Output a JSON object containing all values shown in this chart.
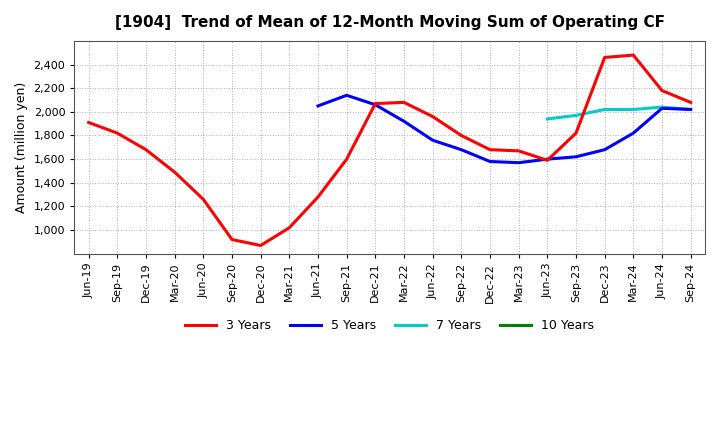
{
  "title": "[1904]  Trend of Mean of 12-Month Moving Sum of Operating CF",
  "ylabel": "Amount (million yen)",
  "background_color": "#ffffff",
  "plot_bg_color": "#ffffff",
  "grid_color": "#aaaaaa",
  "ylim": [
    800,
    2600
  ],
  "yticks": [
    1000,
    1200,
    1400,
    1600,
    1800,
    2000,
    2200,
    2400
  ],
  "x_labels": [
    "Jun-19",
    "Sep-19",
    "Dec-19",
    "Mar-20",
    "Jun-20",
    "Sep-20",
    "Dec-20",
    "Mar-21",
    "Jun-21",
    "Sep-21",
    "Dec-21",
    "Mar-22",
    "Jun-22",
    "Sep-22",
    "Dec-22",
    "Mar-23",
    "Jun-23",
    "Sep-23",
    "Dec-23",
    "Mar-24",
    "Jun-24",
    "Sep-24"
  ],
  "series_3y": {
    "color": "#ff0000",
    "label": "3 Years",
    "x": [
      0,
      1,
      2,
      3,
      4,
      5,
      6,
      7,
      8,
      9,
      10,
      11,
      12,
      13,
      14,
      15,
      16,
      17,
      18,
      19,
      20,
      21
    ],
    "y": [
      1910,
      1820,
      1680,
      1490,
      1260,
      920,
      870,
      1020,
      1280,
      1600,
      2070,
      2080,
      1960,
      1800,
      1680,
      1670,
      1590,
      1820,
      2460,
      2480,
      2180,
      2080
    ]
  },
  "series_5y": {
    "color": "#0000ff",
    "label": "5 Years",
    "x": [
      8,
      9,
      10,
      11,
      12,
      13,
      14,
      15,
      16,
      17,
      18,
      19,
      20,
      21
    ],
    "y": [
      2050,
      2140,
      2060,
      1920,
      1760,
      1680,
      1580,
      1570,
      1600,
      1620,
      1680,
      1820,
      2030,
      2020
    ]
  },
  "series_7y": {
    "color": "#00cccc",
    "label": "7 Years",
    "x": [
      16,
      17,
      18,
      19,
      20,
      21
    ],
    "y": [
      1940,
      1970,
      2020,
      2020,
      2040,
      2020
    ]
  },
  "series_10y": {
    "color": "#008000",
    "label": "10 Years",
    "x": [],
    "y": []
  },
  "legend_colors": [
    "#ff0000",
    "#0000ff",
    "#00cccc",
    "#008000"
  ],
  "legend_labels": [
    "3 Years",
    "5 Years",
    "7 Years",
    "10 Years"
  ]
}
